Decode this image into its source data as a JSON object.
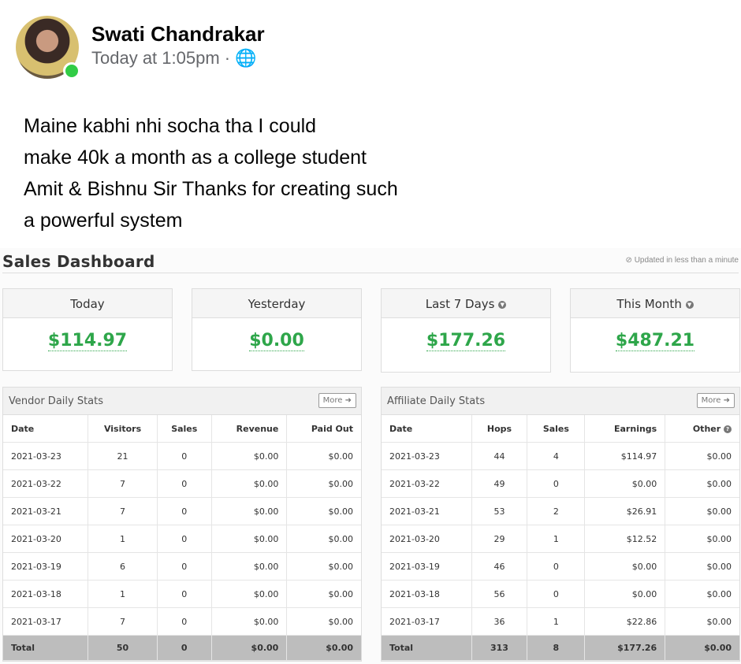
{
  "post": {
    "author": "Swati Chandrakar",
    "time": "Today at 1:05pm",
    "separator": "·",
    "privacy_icon": "globe-icon",
    "lines": [
      "Maine kabhi nhi socha tha I could",
      "make 40k a month as a college student",
      "Amit & Bishnu Sir Thanks for creating such",
      "a powerful system"
    ]
  },
  "dashboard": {
    "title": "Sales Dashboard",
    "updated": "Updated in less than a minute",
    "cards": [
      {
        "label": "Today",
        "value": "$114.97"
      },
      {
        "label": "Yesterday",
        "value": "$0.00"
      },
      {
        "label": "Last 7 Days",
        "value": "$177.26"
      },
      {
        "label": "This Month",
        "value": "$487.21"
      }
    ],
    "accent": "#2ea64a",
    "vendor": {
      "title": "Vendor Daily Stats",
      "more": "More",
      "headers": [
        "Date",
        "Visitors",
        "Sales",
        "Revenue",
        "Paid Out"
      ],
      "rows": [
        [
          "2021-03-23",
          "21",
          "0",
          "$0.00",
          "$0.00"
        ],
        [
          "2021-03-22",
          "7",
          "0",
          "$0.00",
          "$0.00"
        ],
        [
          "2021-03-21",
          "7",
          "0",
          "$0.00",
          "$0.00"
        ],
        [
          "2021-03-20",
          "1",
          "0",
          "$0.00",
          "$0.00"
        ],
        [
          "2021-03-19",
          "6",
          "0",
          "$0.00",
          "$0.00"
        ],
        [
          "2021-03-18",
          "1",
          "0",
          "$0.00",
          "$0.00"
        ],
        [
          "2021-03-17",
          "7",
          "0",
          "$0.00",
          "$0.00"
        ]
      ],
      "total": [
        "Total",
        "50",
        "0",
        "$0.00",
        "$0.00"
      ]
    },
    "affiliate": {
      "title": "Affiliate Daily Stats",
      "more": "More",
      "headers": [
        "Date",
        "Hops",
        "Sales",
        "Earnings",
        "Other"
      ],
      "rows": [
        [
          "2021-03-23",
          "44",
          "4",
          "$114.97",
          "$0.00"
        ],
        [
          "2021-03-22",
          "49",
          "0",
          "$0.00",
          "$0.00"
        ],
        [
          "2021-03-21",
          "53",
          "2",
          "$26.91",
          "$0.00"
        ],
        [
          "2021-03-20",
          "29",
          "1",
          "$12.52",
          "$0.00"
        ],
        [
          "2021-03-19",
          "46",
          "0",
          "$0.00",
          "$0.00"
        ],
        [
          "2021-03-18",
          "56",
          "0",
          "$0.00",
          "$0.00"
        ],
        [
          "2021-03-17",
          "36",
          "1",
          "$22.86",
          "$0.00"
        ]
      ],
      "total": [
        "Total",
        "313",
        "8",
        "$177.26",
        "$0.00"
      ]
    }
  }
}
